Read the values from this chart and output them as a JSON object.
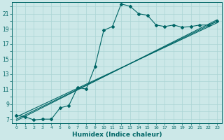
{
  "xlabel": "Humidex (Indice chaleur)",
  "bg_color": "#cce8e8",
  "line_color": "#006666",
  "grid_color": "#aad4d4",
  "x_data": [
    0,
    1,
    2,
    3,
    4,
    5,
    6,
    7,
    8,
    9,
    10,
    11,
    12,
    13,
    14,
    15,
    16,
    17,
    18,
    19,
    20,
    21,
    22,
    23
  ],
  "y_data": [
    7.5,
    7.3,
    6.9,
    7.0,
    7.0,
    8.5,
    8.8,
    11.2,
    11.0,
    14.0,
    18.8,
    19.3,
    22.3,
    22.0,
    21.0,
    20.8,
    19.5,
    19.3,
    19.5,
    19.2,
    19.3,
    19.5,
    19.5,
    20.0
  ],
  "reg_lines": [
    [
      6.8,
      20.2
    ],
    [
      7.3,
      19.8
    ],
    [
      7.0,
      20.0
    ]
  ],
  "ylim": [
    6.5,
    22.5
  ],
  "xlim": [
    -0.5,
    23.5
  ],
  "yticks": [
    7,
    9,
    11,
    13,
    15,
    17,
    19,
    21
  ],
  "xticks": [
    0,
    1,
    2,
    3,
    4,
    5,
    6,
    7,
    8,
    9,
    10,
    11,
    12,
    13,
    14,
    15,
    16,
    17,
    18,
    19,
    20,
    21,
    22,
    23
  ]
}
